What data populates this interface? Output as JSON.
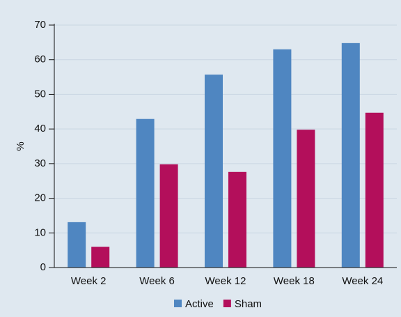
{
  "chart_data": {
    "type": "bar",
    "ylabel": "%",
    "categories": [
      "Week 2",
      "Week 6",
      "Week 12",
      "Week 18",
      "Week 24"
    ],
    "series": [
      {
        "name": "Active",
        "color": "#4f86c1",
        "values": [
          13.1,
          42.9,
          55.7,
          63,
          64.8
        ]
      },
      {
        "name": "Sham",
        "color": "#b30f5b",
        "values": [
          6,
          29.8,
          27.6,
          39.8,
          44.7
        ]
      }
    ],
    "ylim": [
      0,
      70
    ],
    "yticks": [
      0,
      10,
      20,
      30,
      40,
      50,
      60,
      70
    ],
    "grid": true,
    "legend": "bottom"
  }
}
